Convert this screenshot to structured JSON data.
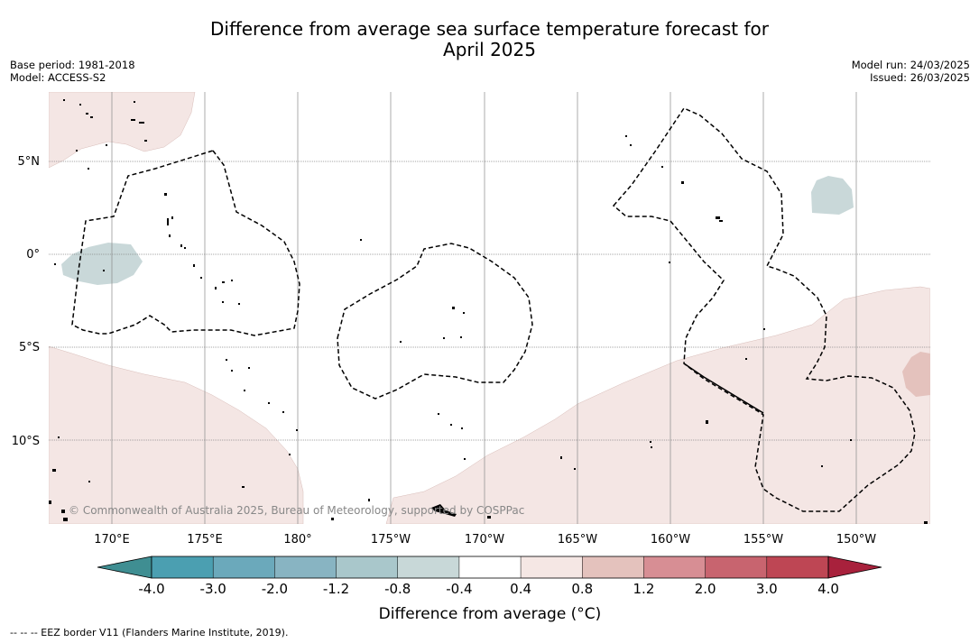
{
  "title": {
    "line1": "Difference from average sea surface temperature forecast for",
    "line2": "April 2025"
  },
  "meta": {
    "base_period": "Base period: 1981-2018",
    "model": "Model: ACCESS-S2",
    "model_run": "Model run: 24/03/2025",
    "issued": "Issued: 26/03/2025"
  },
  "map": {
    "lat_labels": [
      "5°N",
      "0°",
      "5°S",
      "10°S"
    ],
    "lon_labels": [
      "170°E",
      "175°E",
      "180°",
      "175°W",
      "170°W",
      "165°W",
      "160°W",
      "155°W",
      "150°W"
    ],
    "copyright": "© Commonwealth of Australia 2025, Bureau of Meteorology, supported by COSPPac",
    "anomaly_colors": {
      "warm_light": "#f4e6e4",
      "warm_medium": "#e4c2bd",
      "cool_light": "#c9d8d9"
    }
  },
  "colorbar": {
    "title": "Difference from average (°C)",
    "tick_labels": [
      "-4.0",
      "-3.0",
      "-2.0",
      "-1.2",
      "-0.8",
      "-0.4",
      "0.4",
      "0.8",
      "1.2",
      "2.0",
      "3.0",
      "4.0"
    ],
    "colors": [
      "#3f8e92",
      "#4b9fb1",
      "#6ba9bb",
      "#88b4c2",
      "#a9c7cb",
      "#c8d8d8",
      "#ffffff",
      "#f5e7e4",
      "#e4c2bd",
      "#d78e94",
      "#c8646f",
      "#be4654",
      "#a8213c"
    ]
  },
  "footnote": "-- -- -- EEZ border V11 (Flanders Marine Institute, 2019)."
}
